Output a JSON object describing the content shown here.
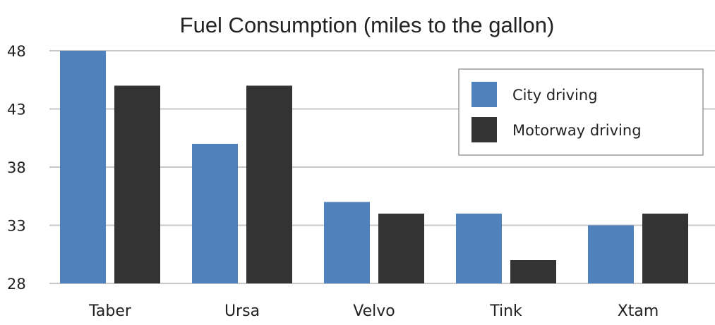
{
  "chart_data": {
    "type": "bar",
    "title": "Fuel Consumption (miles to the gallon)",
    "xlabel": "",
    "ylabel": "",
    "categories": [
      "Taber",
      "Ursa",
      "Velvo",
      "Tink",
      "Xtam"
    ],
    "series": [
      {
        "name": "City driving",
        "color": "#4f81bd",
        "values": [
          48,
          40,
          35,
          34,
          33
        ]
      },
      {
        "name": "Motorway driving",
        "color": "#333333",
        "values": [
          45,
          45,
          34,
          30,
          34
        ]
      }
    ],
    "ylim": [
      28,
      48
    ],
    "yticks": [
      "28",
      "33",
      "38",
      "43",
      "48"
    ],
    "grid": true,
    "legend_position": "top-right"
  }
}
